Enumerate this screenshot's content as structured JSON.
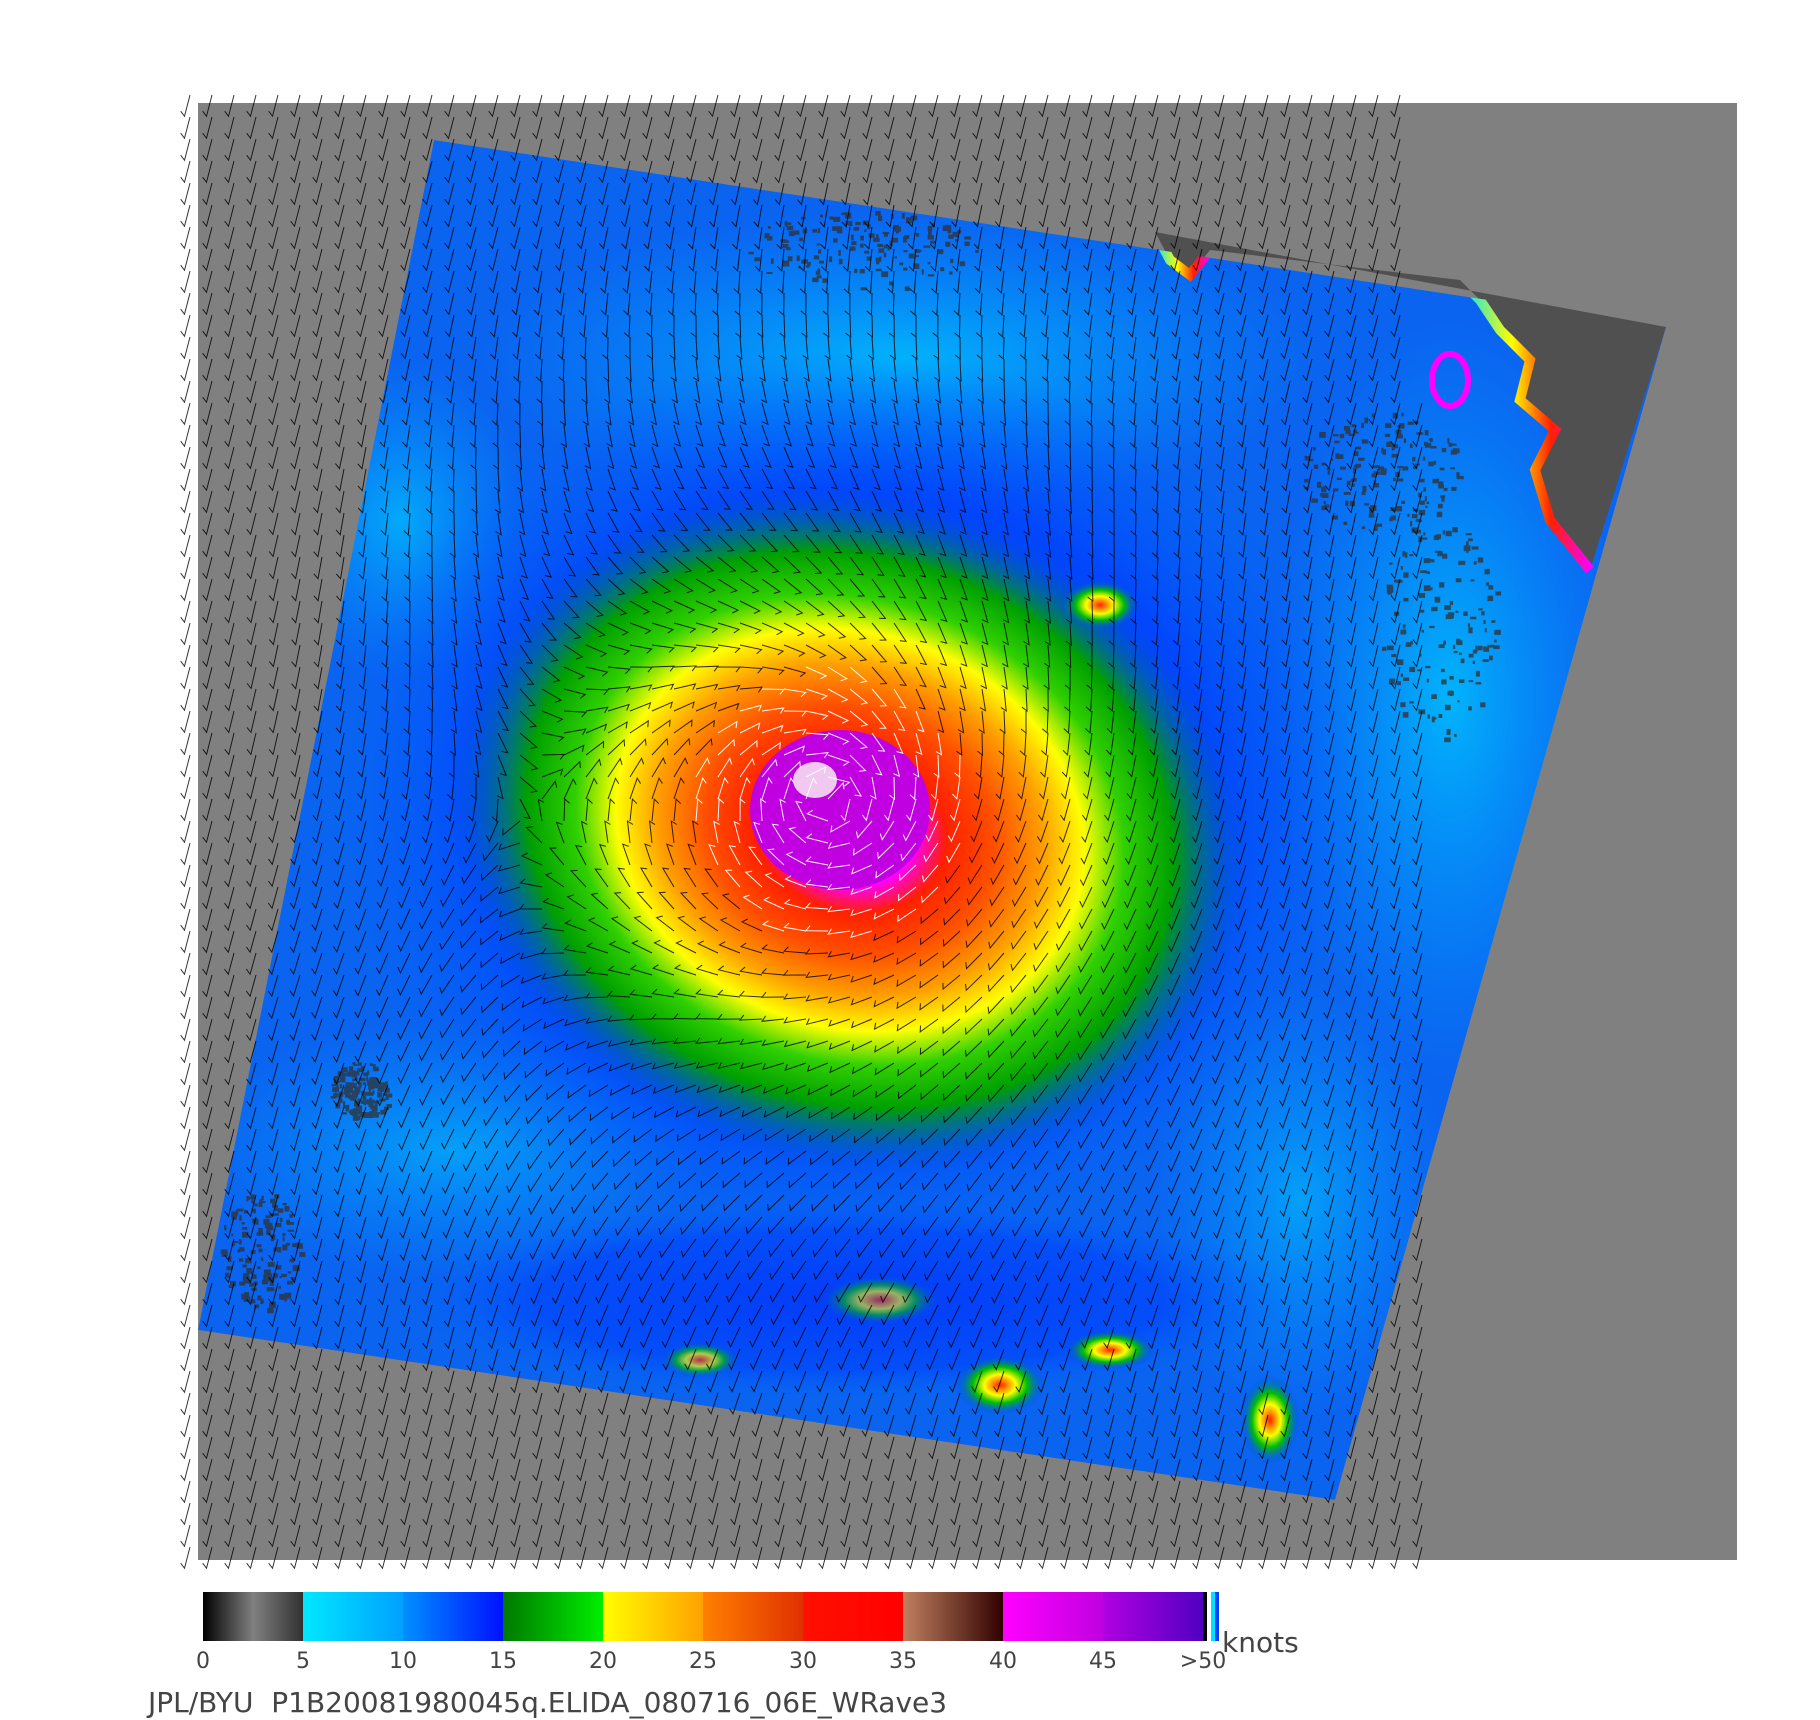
{
  "map": {
    "background_color": "#808080",
    "land_color": "#505050",
    "vector_color_low": "#000000",
    "vector_color_high": "#ffffff"
  },
  "colorbar": {
    "unit": "knots",
    "ticks": [
      "0",
      "5",
      "10",
      "15",
      "20",
      "25",
      "30",
      "35",
      "40",
      "45",
      ">50"
    ],
    "segments": [
      {
        "from": 0,
        "to": 5,
        "colors": [
          "#000000",
          "#808080",
          "#303030"
        ]
      },
      {
        "from": 5,
        "to": 10,
        "colors": [
          "#00e8ff",
          "#00a0ff"
        ]
      },
      {
        "from": 10,
        "to": 15,
        "colors": [
          "#0090ff",
          "#0010ff"
        ]
      },
      {
        "from": 15,
        "to": 20,
        "colors": [
          "#007800",
          "#00f000"
        ]
      },
      {
        "from": 20,
        "to": 25,
        "colors": [
          "#ffff00",
          "#ffa000"
        ]
      },
      {
        "from": 25,
        "to": 30,
        "colors": [
          "#ff8000",
          "#e03000"
        ]
      },
      {
        "from": 30,
        "to": 35,
        "colors": [
          "#ff1000",
          "#ff0000"
        ]
      },
      {
        "from": 35,
        "to": 40,
        "colors": [
          "#c08060",
          "#300000"
        ]
      },
      {
        "from": 40,
        "to": 45,
        "colors": [
          "#ff00ff",
          "#c000e0"
        ]
      },
      {
        "from": 45,
        "to": 50,
        "colors": [
          "#b000e0",
          "#5000c0"
        ]
      }
    ]
  },
  "caption": "JPL/BYU  P1B20081980045q.ELIDA_080716_06E_WRave3"
}
